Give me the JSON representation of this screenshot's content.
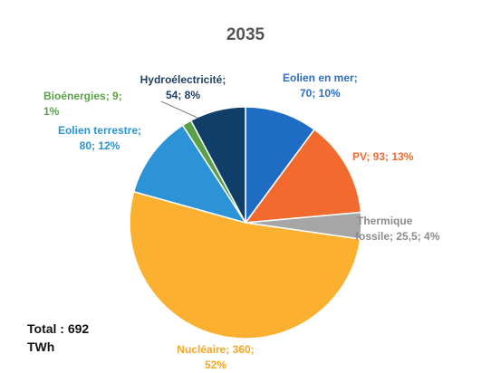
{
  "chart_data": {
    "type": "pie",
    "title": "2035",
    "unit": "TWh",
    "slices": [
      {
        "name": "Eolien en mer",
        "value": 70,
        "percent": "10%",
        "value_label": "70",
        "color": "#1f6cc4",
        "text_color": "#2e6fbf"
      },
      {
        "name": "PV",
        "value": 93,
        "percent": "13%",
        "value_label": "93",
        "color": "#f26a2e",
        "text_color": "#f26a2e"
      },
      {
        "name": "Thermique fossile",
        "value": 25.5,
        "percent": "4%",
        "value_label": "25,5",
        "color": "#a6a6a6",
        "text_color": "#8c8c8c"
      },
      {
        "name": "Nucléaire",
        "value": 360,
        "percent": "52%",
        "value_label": "360",
        "color": "#fbb12f",
        "text_color": "#f5a623"
      },
      {
        "name": "Eolien terrestre",
        "value": 80,
        "percent": "12%",
        "value_label": "80",
        "color": "#2b93d6",
        "text_color": "#2b93d6"
      },
      {
        "name": "Bioénergies",
        "value": 9,
        "percent": "1%",
        "value_label": "9",
        "color": "#5aa046",
        "text_color": "#5aa046"
      },
      {
        "name": "Hydroélectricité",
        "value": 54,
        "percent": "8%",
        "value_label": "54",
        "color": "#0f3e68",
        "text_color": "#1f3f63"
      }
    ],
    "labels": {
      "eolien_mer": [
        "Eolien en mer;",
        "70; 10%"
      ],
      "pv": [
        "PV; 93; 13%"
      ],
      "thermique": [
        "Thermique",
        "fossile; 25,5; 4%"
      ],
      "nucleaire": [
        "Nucléaire; 360;",
        "52%"
      ],
      "eolien_terrestre": [
        "Eolien terrestre;",
        "80; 12%"
      ],
      "bioenergies": [
        "Bioénergies; 9;",
        "1%"
      ],
      "hydro": [
        "Hydroélectricité;",
        "54; 8%"
      ]
    },
    "total": [
      "Total : 692",
      "TWh"
    ]
  }
}
